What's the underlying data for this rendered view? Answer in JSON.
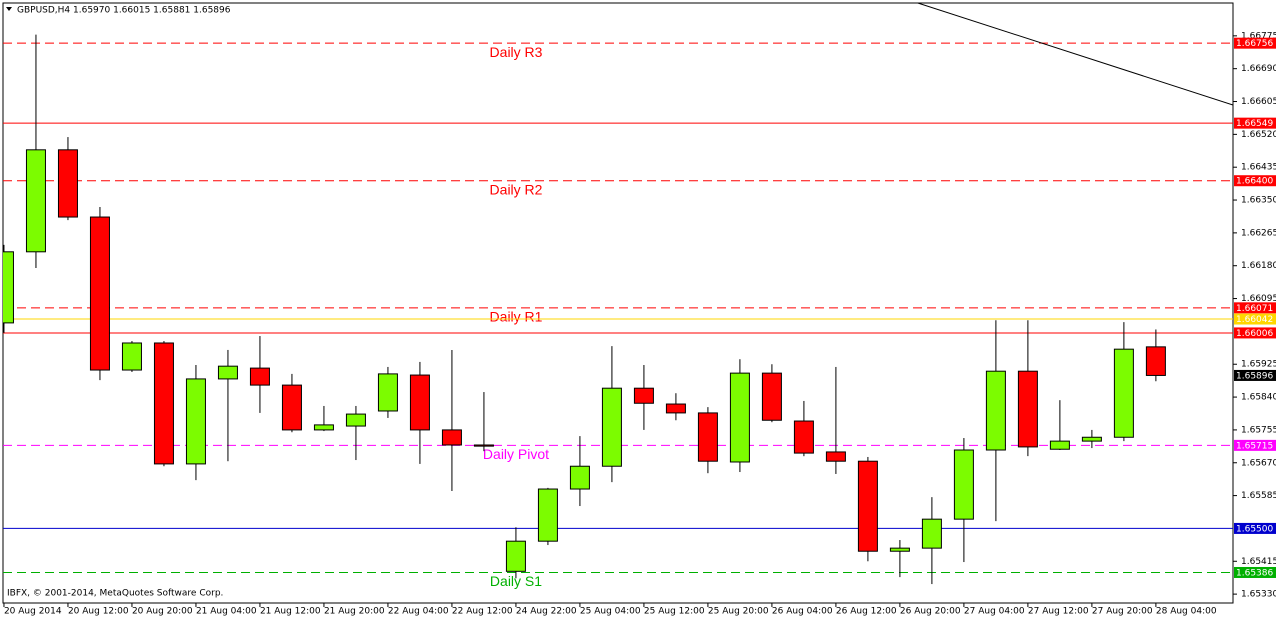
{
  "chart_data": {
    "type": "candlestick",
    "title": "GBPUSD,H4  1.65970 1.66015 1.65881 1.65896",
    "footer": "IBFX, © 2001-2014, MetaQuotes Software Corp.",
    "categories": [
      "20 Aug 2014",
      null,
      "20 Aug 12:00",
      null,
      "20 Aug 20:00",
      null,
      "21 Aug 04:00",
      null,
      "21 Aug 12:00",
      null,
      "21 Aug 20:00",
      null,
      "22 Aug 04:00",
      null,
      "22 Aug 12:00",
      null,
      "24 Aug 22:00",
      null,
      "25 Aug 04:00",
      null,
      "25 Aug 12:00",
      null,
      "25 Aug 20:00",
      null,
      "26 Aug 04:00",
      null,
      "26 Aug 12:00",
      null,
      "26 Aug 20:00",
      null,
      "27 Aug 04:00",
      null,
      "27 Aug 12:00",
      null,
      "27 Aug 20:00",
      null,
      "28 Aug 04:00"
    ],
    "open": [
      1.66032,
      1.66216,
      1.6648,
      1.66306,
      1.6591,
      1.6598,
      1.65667,
      1.65887,
      1.65915,
      1.65871,
      1.65755,
      1.65765,
      1.65804,
      1.65897,
      1.65755,
      1.65716,
      1.65389,
      1.65467,
      1.65602,
      1.65661,
      1.65863,
      1.65822,
      1.65799,
      1.65672,
      1.65902,
      1.65778,
      1.65698,
      1.65674,
      1.65441,
      1.65449,
      1.65524,
      1.65703,
      1.65907,
      1.65705,
      1.65726,
      1.65736,
      1.6597
    ],
    "high": [
      1.66234,
      1.66778,
      1.66513,
      1.66332,
      1.65985,
      1.65985,
      1.65923,
      1.65962,
      1.65998,
      1.659,
      1.65817,
      1.65817,
      1.65918,
      1.65931,
      1.65962,
      1.65853,
      1.65503,
      1.65605,
      1.65739,
      1.65972,
      1.65923,
      1.6585,
      1.65814,
      1.65938,
      1.65925,
      1.6583,
      1.65918,
      1.65685,
      1.6547,
      1.65581,
      1.65734,
      1.66039,
      1.66039,
      1.65832,
      1.65755,
      1.66034,
      1.66015
    ],
    "low": [
      1.66006,
      1.66174,
      1.66298,
      1.65884,
      1.65905,
      1.65661,
      1.65625,
      1.65674,
      1.65799,
      1.65749,
      1.65752,
      1.65677,
      1.65786,
      1.65667,
      1.65597,
      1.657,
      1.65371,
      1.65457,
      1.65558,
      1.6562,
      1.65755,
      1.6578,
      1.65643,
      1.65646,
      1.65775,
      1.65687,
      1.65641,
      1.65415,
      1.65374,
      1.65356,
      1.65413,
      1.65519,
      1.65687,
      1.65703,
      1.65708,
      1.65726,
      1.65881
    ],
    "close": [
      1.66216,
      1.6648,
      1.66306,
      1.6591,
      1.6598,
      1.65667,
      1.65887,
      1.6592,
      1.65871,
      1.65755,
      1.65768,
      1.65796,
      1.659,
      1.65755,
      1.65716,
      1.65713,
      1.65467,
      1.65602,
      1.65661,
      1.65863,
      1.65824,
      1.65799,
      1.65674,
      1.65902,
      1.6578,
      1.65695,
      1.65674,
      1.65441,
      1.65449,
      1.65524,
      1.65703,
      1.65907,
      1.65711,
      1.65726,
      1.65736,
      1.65964,
      1.65896
    ],
    "up_color": "#7cfc00",
    "down_color": "#ff0000",
    "xlim": [
      -0.03,
      38.41
    ],
    "ylim": [
      1.65307,
      1.6686
    ],
    "yticks": [
      1.66775,
      {
        "value": 1.6669,
        "label": "1.66690"
      },
      1.66605,
      {
        "value": 1.6652,
        "label": "1.66520"
      },
      1.66435,
      {
        "value": 1.6635,
        "label": "1.66350"
      },
      1.66265,
      {
        "value": 1.6618,
        "label": "1.66180"
      },
      1.66095,
      1.65925,
      {
        "value": 1.6584,
        "label": "1.65840"
      },
      1.65755,
      {
        "value": 1.6567,
        "label": "1.65670"
      },
      1.65585,
      1.65415,
      {
        "value": 1.6533,
        "label": "1.65330"
      }
    ],
    "levels": [
      {
        "value": 1.66756,
        "name": "Daily R3",
        "color": "#ff0000",
        "style": "dash"
      },
      {
        "value": 1.66549,
        "color": "#ff0000",
        "style": "solid"
      },
      {
        "value": 1.664,
        "label": "1.66400",
        "name": "Daily R2",
        "color": "#ff0000",
        "style": "dash"
      },
      {
        "value": 1.66071,
        "name": "Daily R1",
        "color": "#ff0000",
        "style": "dash"
      },
      {
        "value": 1.66042,
        "color": "#ffd700",
        "style": "solid"
      },
      {
        "value": 1.66006,
        "color": "#ff0000",
        "style": "solid"
      },
      {
        "value": 1.65715,
        "name": "Daily Pivot",
        "color": "#ff00ff",
        "style": "dash"
      },
      {
        "value": 1.655,
        "label": "1.65500",
        "color": "#0000cd",
        "style": "solid"
      },
      {
        "value": 1.65386,
        "name": "Daily S1",
        "color": "#00b000",
        "style": "dash"
      }
    ],
    "price": 1.65896,
    "trendline": {
      "x": [
        28.56,
        38.41
      ],
      "values": [
        1.6686,
        1.66596
      ]
    }
  }
}
